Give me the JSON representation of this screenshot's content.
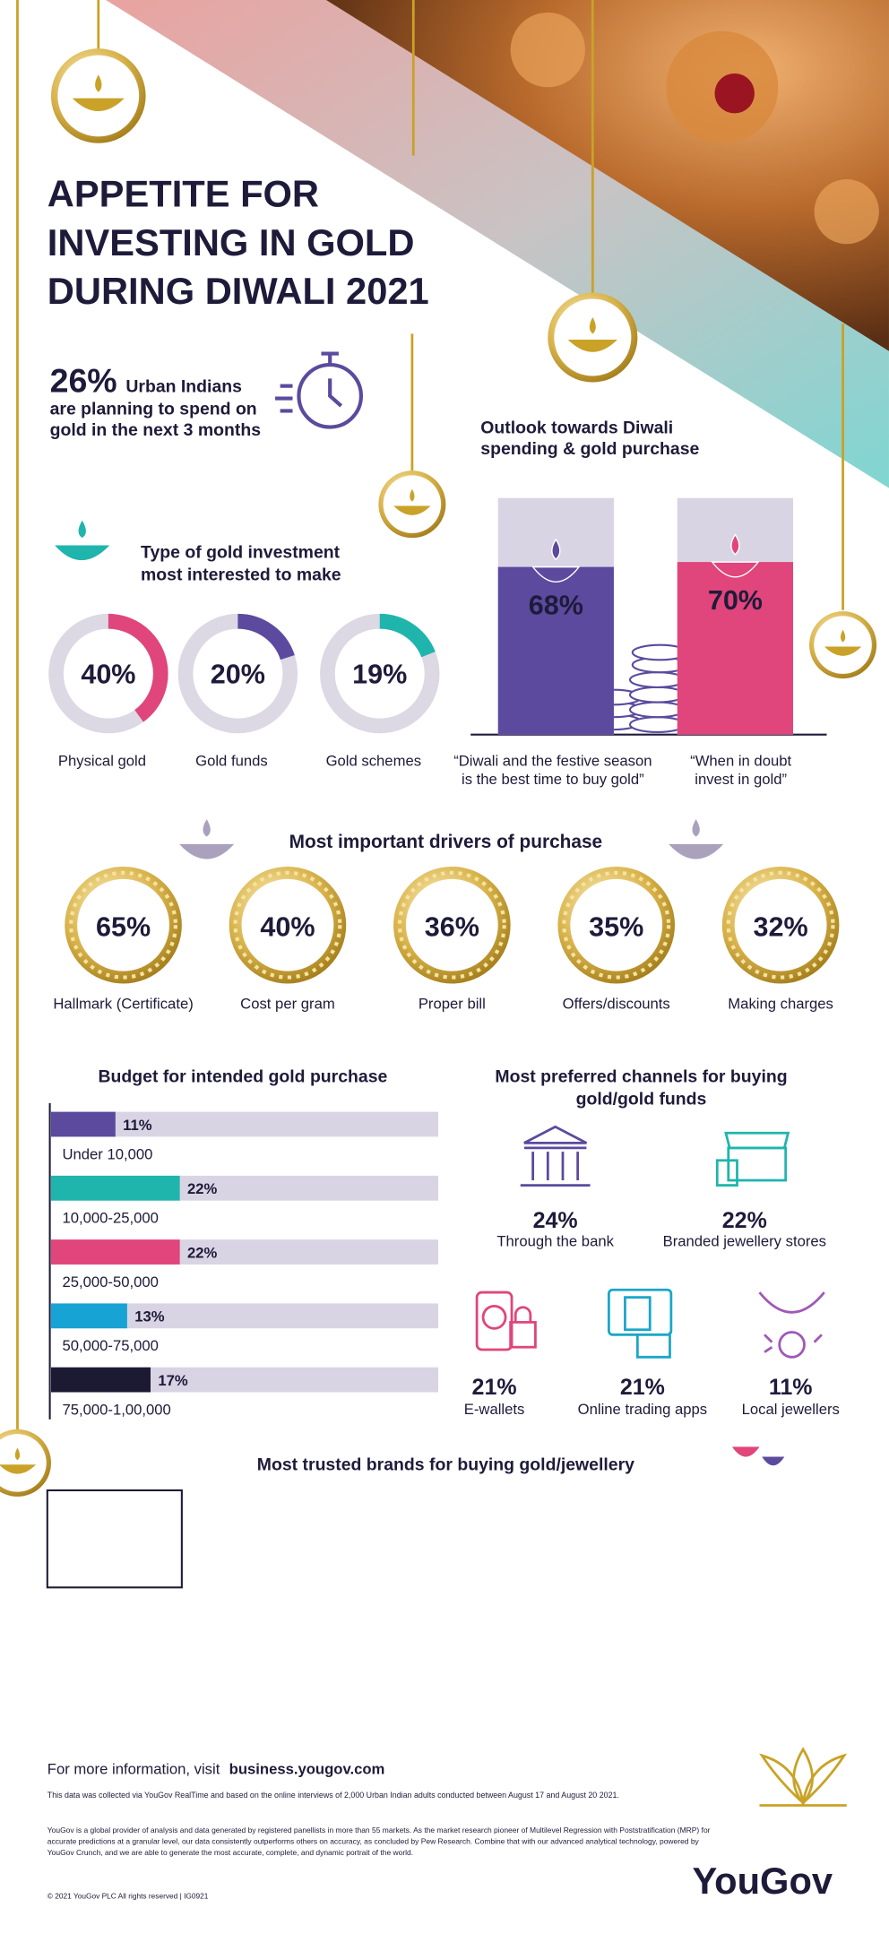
{
  "header": {
    "title_lines": [
      "APPETITE FOR",
      "INVESTING IN GOLD",
      "DURING DIWALI 2021"
    ]
  },
  "intro": {
    "label": "26%",
    "lead": "Urban Indians",
    "lines": [
      "are planning to spend on",
      "gold in the next 3 months"
    ]
  },
  "investment_type": {
    "title_lines": [
      "Type of gold investment",
      "most interested to make"
    ],
    "items": [
      {
        "value": 40,
        "label": "40%",
        "name": "Physical gold",
        "color": "#e0457b"
      },
      {
        "value": 20,
        "label": "20%",
        "name": "Gold funds",
        "color": "#5b4a9e"
      },
      {
        "value": 19,
        "label": "19%",
        "name": "Gold schemes",
        "color": "#1fb5ad"
      }
    ]
  },
  "outlook": {
    "title_lines": [
      "Outlook towards Diwali",
      "spending & gold purchase"
    ],
    "items": [
      {
        "value": 68,
        "label": "68%",
        "color": "#5b4a9e",
        "caption_lines": [
          "“Diwali and the festive season",
          "is the best time to buy gold”"
        ]
      },
      {
        "value": 70,
        "label": "70%",
        "color": "#e0457b",
        "caption_lines": [
          "“When in doubt",
          "invest in gold”"
        ]
      }
    ]
  },
  "drivers": {
    "title": "Most important drivers of purchase",
    "items": [
      {
        "label": "65%",
        "name": "Hallmark (Certificate)",
        "color": "#e0457b"
      },
      {
        "label": "40%",
        "name": "Cost per gram",
        "color": "#5b4a9e"
      },
      {
        "label": "36%",
        "name": "Proper bill",
        "color": "#1fb5ad"
      },
      {
        "label": "35%",
        "name": "Offers/discounts",
        "color": "#1ba6c9"
      },
      {
        "label": "32%",
        "name": "Making charges",
        "color": "#a058b5"
      }
    ]
  },
  "budget": {
    "title": "Budget for intended gold purchase",
    "items": [
      {
        "value": 11,
        "label": "11%",
        "range": "Under 10,000",
        "color": "#5b4a9e"
      },
      {
        "value": 22,
        "label": "22%",
        "range": "10,000-25,000",
        "color": "#1fb5ad"
      },
      {
        "value": 22,
        "label": "22%",
        "range": "25,000-50,000",
        "color": "#e0457b"
      },
      {
        "value": 13,
        "label": "13%",
        "range": "50,000-75,000",
        "color": "#17a3d3"
      },
      {
        "value": 17,
        "label": "17%",
        "range": "75,000-1,00,000",
        "color": "#1c1a33"
      }
    ]
  },
  "channels": {
    "title_lines": [
      "Most preferred channels for buying",
      "gold/gold funds"
    ],
    "items": [
      {
        "label": "24%",
        "name": "Through the bank",
        "color": "#5b4a9e"
      },
      {
        "label": "22%",
        "name": "Branded jewellery stores",
        "color": "#1fb5ad"
      },
      {
        "label": "21%",
        "name": "E-wallets",
        "color": "#e0457b"
      },
      {
        "label": "21%",
        "name": "Online trading apps",
        "color": "#1ba6c9"
      },
      {
        "label": "11%",
        "name": "Local jewellers",
        "color": "#a058b5"
      }
    ]
  },
  "brands": {
    "title": "Most trusted brands for buying gold/jewellery"
  },
  "footer": {
    "more": "For more information, visit",
    "link": "business.yougov.com",
    "note": "This data was collected via YouGov RealTime and based on the online interviews of 2,000 Urban Indian adults conducted between August 17 and August 20 2021.",
    "about_lines": [
      "YouGov is a global provider of analysis and data generated by registered panellists in more than 55 markets.  As the market research pioneer of Multilevel Regression with Poststratification (MRP) for",
      "accurate predictions at a granular level, our data consistently outperforms others on accuracy, as concluded by Pew Research. Combine that with our advanced analytical technology, powered by",
      "YouGov Crunch, and we are able to generate the most accurate, complete, and dynamic portrait of the world."
    ],
    "copyright": "© 2021 YouGov PLC All rights reserved | IG0921",
    "logo": "YouGov"
  }
}
